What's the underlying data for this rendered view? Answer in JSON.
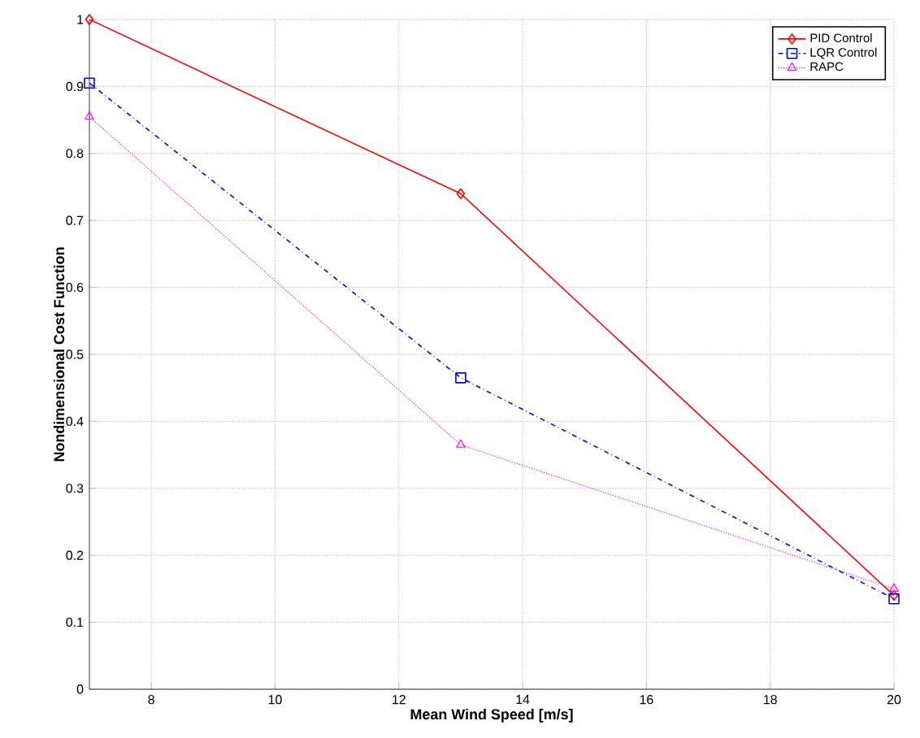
{
  "chart_data": {
    "type": "line",
    "xlabel": "Mean Wind Speed [m/s]",
    "ylabel": "Nondimensional Cost Function",
    "x": [
      7,
      13,
      20
    ],
    "series": [
      {
        "name": "PID Control",
        "color": "#ff0000",
        "values": [
          1.0,
          0.74,
          0.14
        ],
        "marker": "diamond",
        "line_style": "solid"
      },
      {
        "name": "LQR Control",
        "color": "#0000ff",
        "values": [
          0.905,
          0.465,
          0.135
        ],
        "marker": "square",
        "line_style": "dashdot"
      },
      {
        "name": "RAPC",
        "color": "#ff00ff",
        "values": [
          0.855,
          0.365,
          0.15
        ],
        "marker": "triangle",
        "line_style": "dotted"
      }
    ],
    "xlim": [
      7,
      20
    ],
    "ylim": [
      0,
      1
    ],
    "xticks": [
      8,
      10,
      12,
      14,
      16,
      18,
      20
    ],
    "yticks": [
      0,
      0.1,
      0.2,
      0.3,
      0.4,
      0.5,
      0.6,
      0.7,
      0.8,
      0.9,
      1
    ],
    "grid": true,
    "legend": "top right"
  }
}
